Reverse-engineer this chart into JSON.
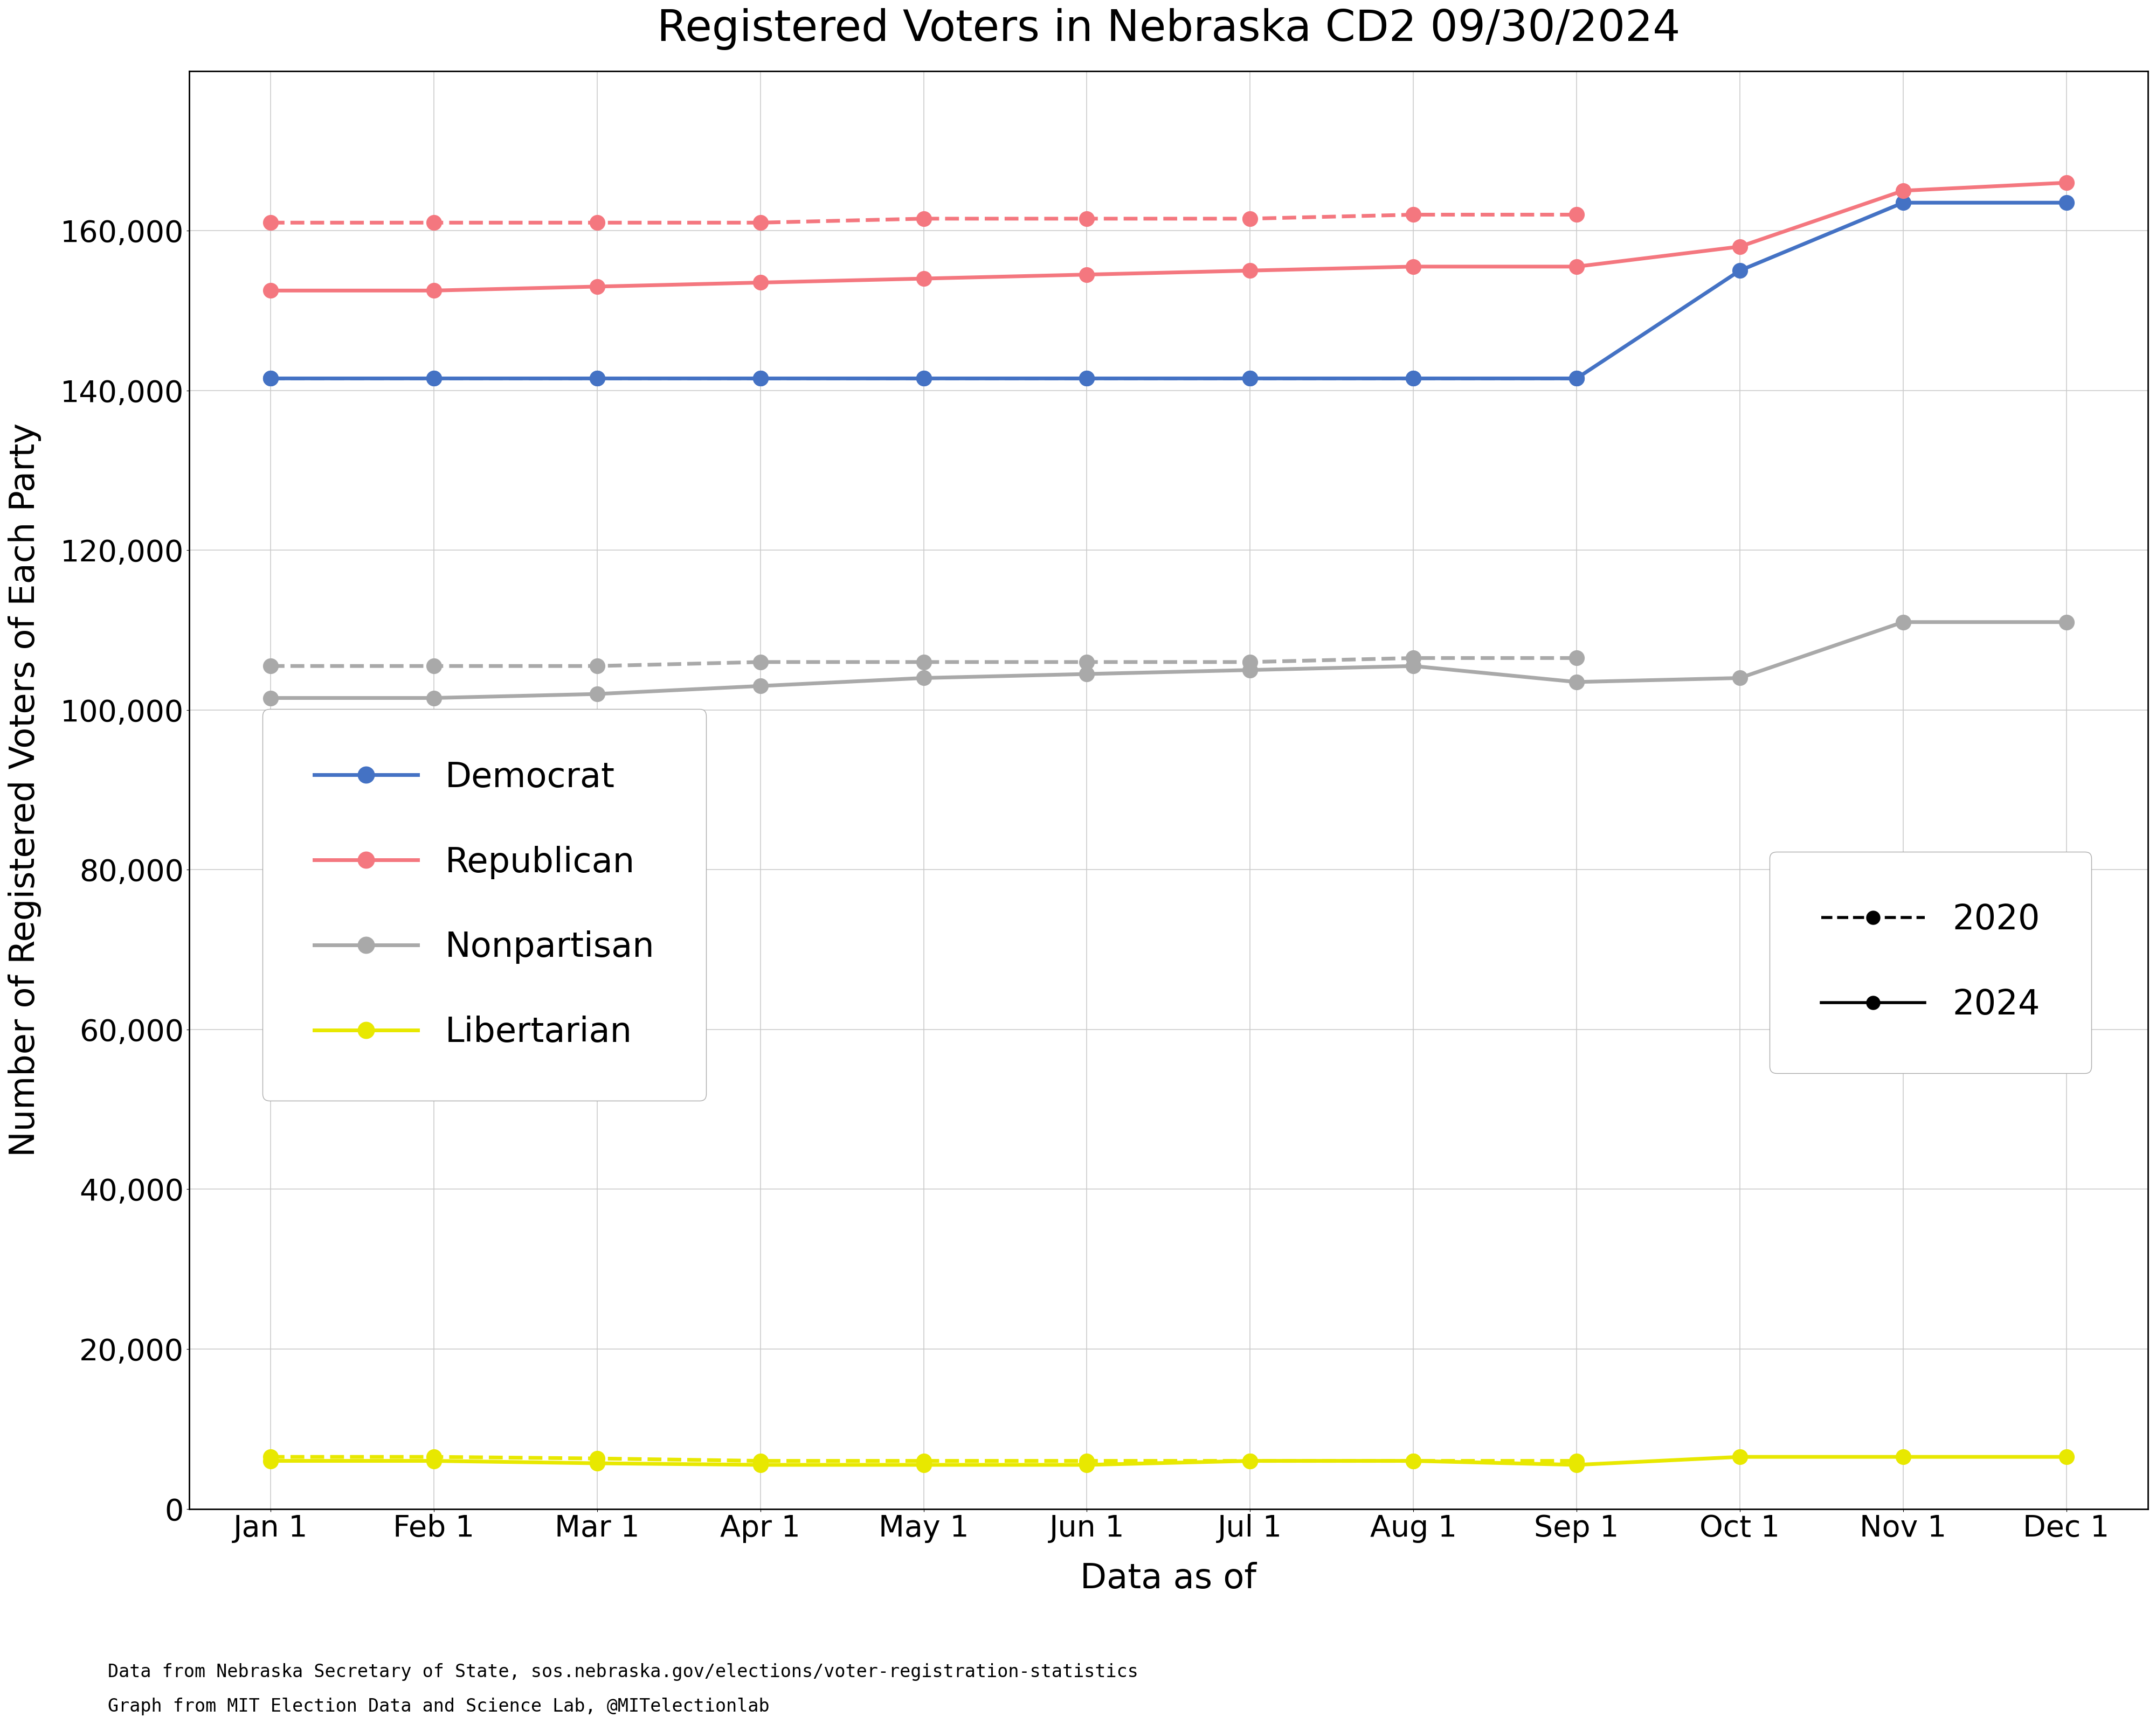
{
  "title": "Registered Voters in Nebraska CD2 09/30/2024",
  "ylabel": "Number of Registered Voters of Each Party",
  "xlabel": "Data as of",
  "footnote1": "Data from Nebraska Secretary of State, sos.nebraska.gov/elections/voter-registration-statistics",
  "footnote2": "Graph from MIT Election Data and Science Lab, @MITelectionlab",
  "x_labels": [
    "Jan 1",
    "Feb 1",
    "Mar 1",
    "Apr 1",
    "May 1",
    "Jun 1",
    "Jul 1",
    "Aug 1",
    "Sep 1",
    "Oct 1",
    "Nov 1",
    "Dec 1"
  ],
  "x_values": [
    1,
    2,
    3,
    4,
    5,
    6,
    7,
    8,
    9,
    10,
    11,
    12
  ],
  "colors": {
    "democrat": "#4472C4",
    "republican": "#F4777F",
    "nonpartisan": "#A9A9A9",
    "libertarian": "#E8E800"
  },
  "data_2020": {
    "democrat": [
      141500,
      141500,
      141500,
      141500,
      141500,
      141500,
      141500,
      141500,
      141500,
      null,
      null,
      null
    ],
    "republican": [
      161000,
      161000,
      161000,
      161000,
      161500,
      161500,
      161500,
      162000,
      162000,
      null,
      null,
      null
    ],
    "nonpartisan": [
      105500,
      105500,
      105500,
      106000,
      106000,
      106000,
      106000,
      106500,
      106500,
      null,
      null,
      null
    ],
    "libertarian": [
      6500,
      6500,
      6300,
      6000,
      6000,
      6000,
      6000,
      6000,
      6000,
      null,
      null,
      null
    ]
  },
  "data_2024": {
    "democrat": [
      141500,
      141500,
      141500,
      141500,
      141500,
      141500,
      141500,
      141500,
      141500,
      155000,
      163500,
      163500
    ],
    "republican": [
      152500,
      152500,
      153000,
      153500,
      154000,
      154500,
      155000,
      155500,
      155500,
      158000,
      165000,
      166000
    ],
    "nonpartisan": [
      101500,
      101500,
      102000,
      103000,
      104000,
      104500,
      105000,
      105500,
      103500,
      104000,
      111000,
      111000
    ],
    "libertarian": [
      6000,
      6000,
      5700,
      5500,
      5500,
      5500,
      6000,
      6000,
      5500,
      6500,
      6500,
      6500
    ]
  },
  "ylim": [
    0,
    180000
  ],
  "yticks": [
    0,
    20000,
    40000,
    60000,
    80000,
    100000,
    120000,
    140000,
    160000
  ],
  "legend_parties": [
    "Democrat",
    "Republican",
    "Nonpartisan",
    "Libertarian"
  ],
  "legend_years": [
    "2020",
    "2024"
  ],
  "title_fontsize": 58,
  "label_fontsize": 46,
  "tick_fontsize": 40,
  "legend_fontsize": 46,
  "footnote_fontsize": 24
}
